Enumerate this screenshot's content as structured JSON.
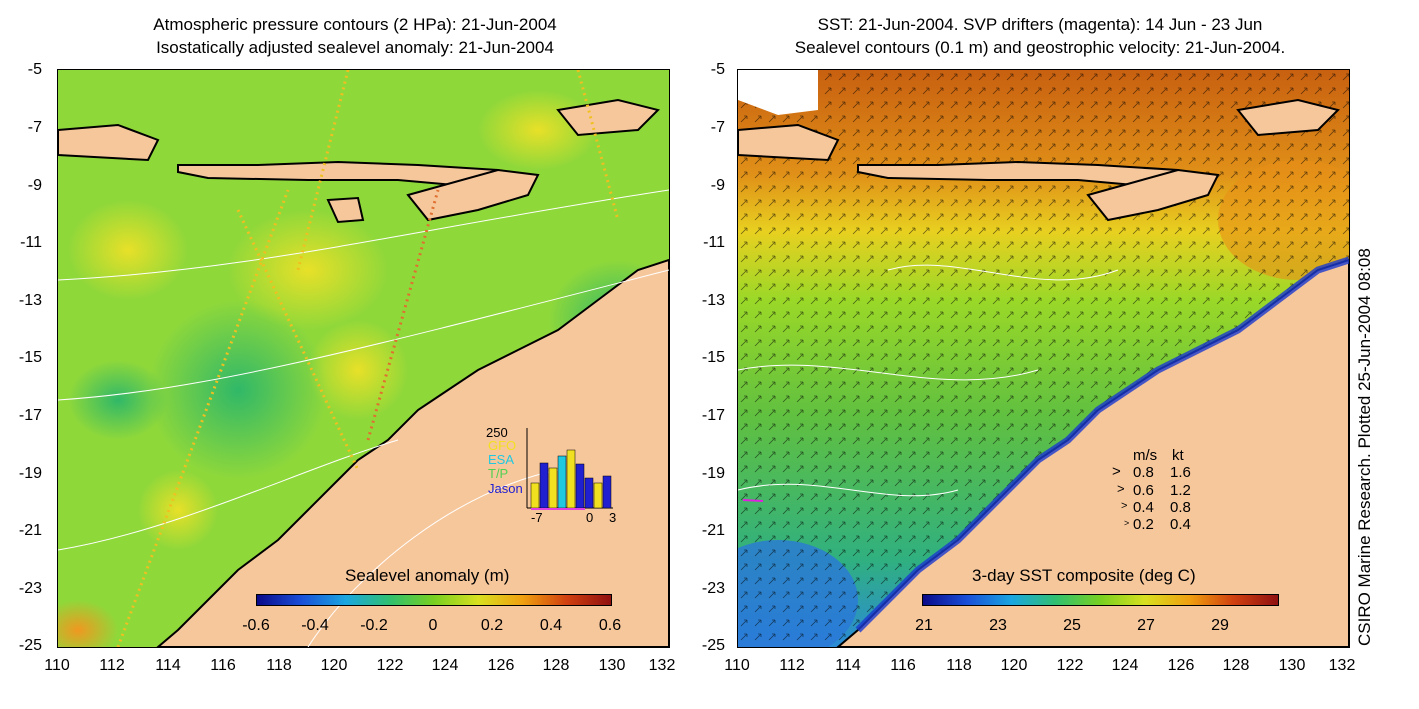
{
  "left_panel": {
    "title_line1": "Atmospheric pressure contours (2 HPa): 21-Jun-2004",
    "title_line2": "Isostatically adjusted sealevel anomaly: 21-Jun-2004",
    "y_ticks": [
      "-5",
      "-7",
      "-9",
      "-11",
      "-13",
      "-15",
      "-17",
      "-19",
      "-21",
      "-23",
      "-25"
    ],
    "x_ticks": [
      "110",
      "112",
      "114",
      "116",
      "118",
      "120",
      "122",
      "124",
      "126",
      "128",
      "130",
      "132"
    ],
    "colorbar": {
      "title": "Sealevel anomaly (m)",
      "labels": [
        "-0.6",
        "-0.4",
        "-0.2",
        "0",
        "0.2",
        "0.4",
        "0.6"
      ],
      "colors": [
        "#0a0a8a",
        "#1a4fd8",
        "#1aa6e0",
        "#30c070",
        "#78d020",
        "#d8e020",
        "#f0a010",
        "#d04010",
        "#901010"
      ]
    },
    "inset": {
      "ymax_label": "250",
      "legend": [
        {
          "text": "GFO",
          "color": "#f0e020"
        },
        {
          "text": "ESA",
          "color": "#20c8e0"
        },
        {
          "text": "T/P",
          "color": "#50d050"
        },
        {
          "text": "Jason",
          "color": "#2020d0"
        }
      ],
      "x_labels": [
        "-7",
        "0",
        "3"
      ]
    }
  },
  "right_panel": {
    "title_line1": "SST: 21-Jun-2004. SVP drifters (magenta): 14 Jun - 23 Jun",
    "title_line2": "Sealevel contours (0.1 m) and geostrophic velocity: 21-Jun-2004.",
    "y_ticks": [
      "-5",
      "-7",
      "-9",
      "-11",
      "-13",
      "-15",
      "-17",
      "-19",
      "-21",
      "-23",
      "-25"
    ],
    "x_ticks": [
      "110",
      "112",
      "114",
      "116",
      "118",
      "120",
      "122",
      "124",
      "126",
      "128",
      "130",
      "132"
    ],
    "colorbar": {
      "title": "3-day SST composite (deg C)",
      "labels": [
        "21",
        "23",
        "25",
        "27",
        "29"
      ],
      "colors": [
        "#0a0a8a",
        "#1a4fd8",
        "#1aa6e0",
        "#30c070",
        "#78d020",
        "#d8e020",
        "#f0a010",
        "#d04010",
        "#901010"
      ]
    },
    "velocity_legend": {
      "header_ms": "m/s",
      "header_kt": "kt",
      "rows": [
        {
          "ms": "0.8",
          "kt": "1.6"
        },
        {
          "ms": "0.6",
          "kt": "1.2"
        },
        {
          "ms": "0.4",
          "kt": "0.8"
        },
        {
          "ms": "0.2",
          "kt": "0.4"
        }
      ]
    }
  },
  "credit": "CSIRO Marine Research. Plotted 25-Jun-2004 08:08",
  "colors": {
    "land": "#f7c79c",
    "ocean_left": "#8fd83a",
    "ocean_right_north": "#d87a18",
    "ocean_right_south": "#6cc83a",
    "cold_coast": "#1a5ad8"
  }
}
